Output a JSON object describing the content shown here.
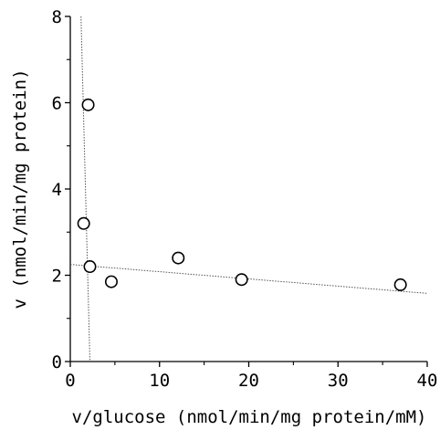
{
  "chart_data": {
    "type": "scatter",
    "xlabel": "v/glucose (nmol/min/mg protein/mM)",
    "ylabel": "v  (nmol/min/mg protein)",
    "xlim": [
      0,
      40
    ],
    "ylim": [
      0,
      8
    ],
    "x_ticks": [
      "0",
      "10",
      "20",
      "30",
      "40"
    ],
    "y_ticks": [
      "0",
      "2",
      "4",
      "6",
      "8"
    ],
    "grid": false,
    "points": [
      {
        "x": 2.0,
        "y": 5.95
      },
      {
        "x": 1.5,
        "y": 3.2
      },
      {
        "x": 2.2,
        "y": 2.2
      },
      {
        "x": 4.6,
        "y": 1.85
      },
      {
        "x": 12.1,
        "y": 2.4
      },
      {
        "x": 19.2,
        "y": 1.9
      },
      {
        "x": 37.0,
        "y": 1.78
      }
    ],
    "fit_lines": [
      {
        "x1": 1.2,
        "y1": 8.0,
        "x2": 2.2,
        "y2": 0.0
      },
      {
        "x1": 0.0,
        "y1": 2.25,
        "x2": 40.0,
        "y2": 1.58
      }
    ]
  }
}
